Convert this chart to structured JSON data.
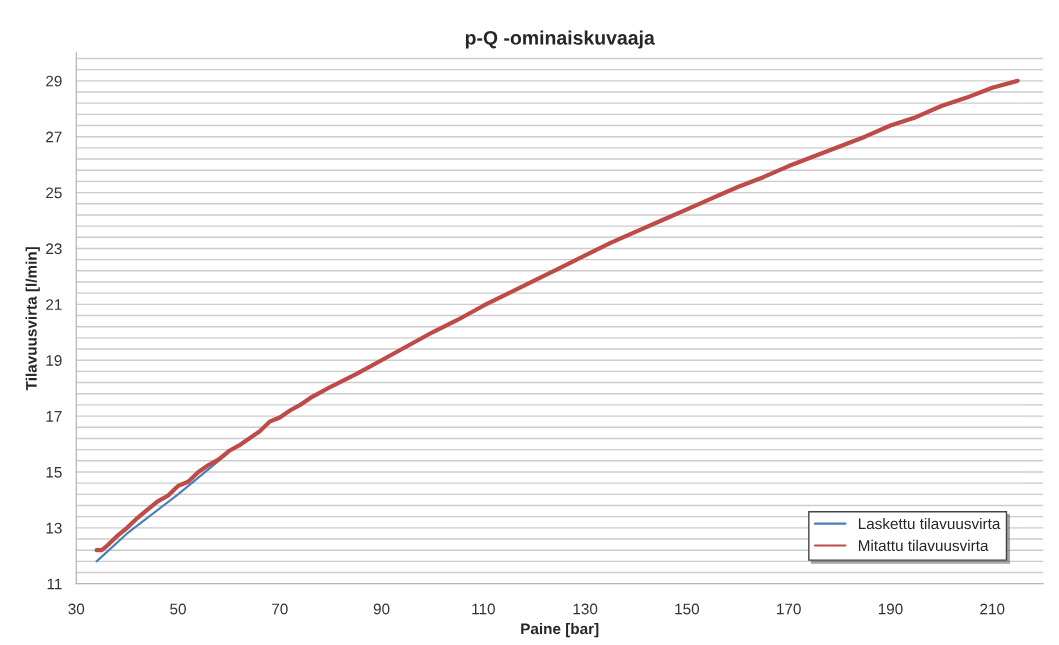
{
  "chart_data": {
    "type": "line",
    "title": "p-Q -ominaiskuvaaja",
    "xlabel": "Paine [bar]",
    "ylabel": "Tilavuusvirta [l/min]",
    "xlim": [
      30,
      220
    ],
    "xticks": [
      30,
      50,
      70,
      90,
      110,
      130,
      150,
      170,
      190,
      210
    ],
    "ylim": [
      11,
      30
    ],
    "yticks": [
      11,
      {
        "value": 11.4,
        "label": null
      },
      {
        "value": 11.8,
        "label": null
      },
      {
        "value": 12.2,
        "label": null
      },
      {
        "value": 12.6,
        "label": null
      },
      13,
      {
        "value": 13.4,
        "label": null
      },
      {
        "value": 13.8,
        "label": null
      },
      {
        "value": 14.2,
        "label": null
      },
      {
        "value": 14.6,
        "label": null
      },
      15,
      {
        "value": 15.4,
        "label": null
      },
      {
        "value": 15.8,
        "label": null
      },
      {
        "value": 16.2,
        "label": null
      },
      {
        "value": 16.6,
        "label": null
      },
      17,
      {
        "value": 17.4,
        "label": null
      },
      {
        "value": 17.8,
        "label": null
      },
      {
        "value": 18.2,
        "label": null
      },
      {
        "value": 18.6,
        "label": null
      },
      19,
      {
        "value": 19.4,
        "label": null
      },
      {
        "value": 19.8,
        "label": null
      },
      {
        "value": 20.2,
        "label": null
      },
      {
        "value": 20.6,
        "label": null
      },
      21,
      {
        "value": 21.4,
        "label": null
      },
      {
        "value": 21.8,
        "label": null
      },
      {
        "value": 22.2,
        "label": null
      },
      {
        "value": 22.6,
        "label": null
      },
      23,
      {
        "value": 23.4,
        "label": null
      },
      {
        "value": 23.8,
        "label": null
      },
      {
        "value": 24.2,
        "label": null
      },
      {
        "value": 24.6,
        "label": null
      },
      25,
      {
        "value": 25.4,
        "label": null
      },
      {
        "value": 25.8,
        "label": null
      },
      {
        "value": 26.2,
        "label": null
      },
      {
        "value": 26.6,
        "label": null
      },
      27,
      {
        "value": 27.4,
        "label": null
      },
      {
        "value": 27.8,
        "label": null
      },
      {
        "value": 28.2,
        "label": null
      },
      {
        "value": 28.6,
        "label": null
      },
      29,
      {
        "value": 29.4,
        "label": null
      },
      {
        "value": 29.8,
        "label": null
      }
    ],
    "grid": "y",
    "legend": "bottom right",
    "marker": "none",
    "line_style": "solid",
    "series": [
      {
        "name": "Laskettu tilavuusvirta",
        "color": "#4a7ebb",
        "x": [
          34,
          40,
          50,
          60
        ],
        "values": [
          11.8,
          12.8,
          14.2,
          15.7
        ]
      },
      {
        "name": "Mitattu tilavuusvirta",
        "color": "#be4b48",
        "x": [
          34,
          35,
          36,
          38,
          40,
          42,
          44,
          46,
          48,
          50,
          52,
          54,
          56,
          58,
          60,
          62,
          64,
          66,
          68,
          70,
          72,
          74,
          76,
          78,
          80,
          85,
          90,
          95,
          100,
          105,
          110,
          115,
          120,
          125,
          130,
          135,
          140,
          145,
          150,
          155,
          160,
          165,
          170,
          175,
          180,
          185,
          190,
          195,
          200,
          205,
          210,
          215
        ],
        "values": [
          12.2,
          12.2,
          12.35,
          12.7,
          13.0,
          13.35,
          13.65,
          13.95,
          14.15,
          14.5,
          14.65,
          15.0,
          15.25,
          15.45,
          15.75,
          15.95,
          16.2,
          16.45,
          16.8,
          16.95,
          17.2,
          17.4,
          17.65,
          17.85,
          18.05,
          18.5,
          19.0,
          19.5,
          20.0,
          20.45,
          20.95,
          21.4,
          21.85,
          22.3,
          22.75,
          23.2,
          23.6,
          24.0,
          24.4,
          24.8,
          25.2,
          25.55,
          25.95,
          26.3,
          26.65,
          27.0,
          27.4,
          27.7,
          28.1,
          28.4,
          28.75,
          29.0
        ]
      }
    ]
  }
}
